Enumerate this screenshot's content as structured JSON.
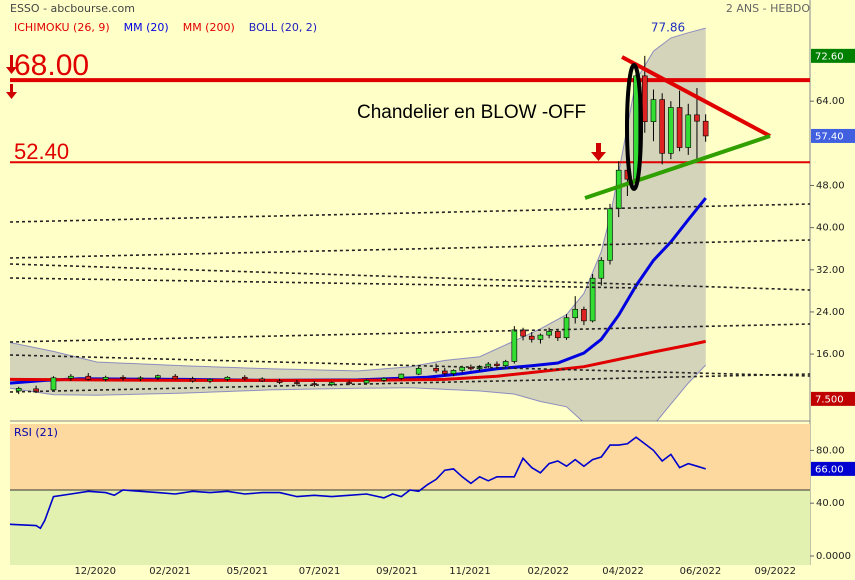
{
  "chart_data": [
    {
      "type": "candlestick",
      "title": "ESSO - abcbourse.com",
      "subtitle": "2 ANS - HEBDO",
      "annotation": "Chandelier en BLOW -OFF",
      "xlim": [
        0,
        92
      ],
      "xticks": [
        {
          "value": 9.8,
          "label": "12/2020"
        },
        {
          "value": 18.4,
          "label": "02/2021"
        },
        {
          "value": 27.3,
          "label": "05/2021"
        },
        {
          "value": 35.6,
          "label": "07/2021"
        },
        {
          "value": 44.5,
          "label": "09/2021"
        },
        {
          "value": 52.9,
          "label": "11/2021"
        },
        {
          "value": 61.9,
          "label": "02/2022"
        },
        {
          "value": 70.5,
          "label": "04/2022"
        },
        {
          "value": 79.4,
          "label": "06/2022"
        },
        {
          "value": 88,
          "label": "09/2022"
        }
      ],
      "ylim": [
        3.3,
        83.2
      ],
      "yticks": [
        {
          "value": 16,
          "label": "16.00"
        },
        {
          "value": 24,
          "label": "24.00"
        },
        {
          "value": 32,
          "label": "32.00"
        },
        {
          "value": 40,
          "label": "40.00"
        },
        {
          "value": 48,
          "label": "48.00"
        },
        {
          "value": 64,
          "label": "64.00"
        }
      ],
      "up_color": "#33dd33",
      "down_color": "#dd2222",
      "x": [
        1,
        3,
        5,
        7,
        9,
        11,
        13,
        15,
        17,
        19,
        21,
        23,
        25,
        27,
        29,
        31,
        33,
        35,
        37,
        39,
        41,
        43,
        45,
        47,
        49,
        50,
        51,
        52,
        53,
        54,
        55,
        56,
        57,
        58,
        59,
        60,
        61,
        62,
        63,
        64,
        65,
        66,
        67,
        68,
        69,
        70,
        71,
        72,
        73,
        74,
        75,
        76,
        77,
        78,
        79,
        80
      ],
      "open": [
        9.0,
        9.4,
        9.2,
        11.4,
        11.8,
        11.2,
        11.6,
        11.3,
        11.5,
        11.8,
        11.3,
        10.9,
        11.2,
        11.6,
        11.3,
        10.9,
        10.6,
        10.4,
        10.2,
        10.6,
        10.5,
        11.0,
        11.4,
        12.2,
        13.3,
        12.8,
        12.3,
        12.9,
        13.5,
        13.2,
        13.7,
        14.1,
        13.8,
        14.6,
        20.6,
        19.4,
        18.8,
        19.6,
        20.3,
        19.1,
        22.9,
        24.5,
        22.3,
        30.4,
        33.8,
        43.6,
        50.9,
        49.2,
        68.8,
        60.1,
        64.3,
        54.1,
        62.8,
        55.2,
        61.4,
        60.2
      ],
      "high": [
        9.8,
        10.0,
        11.8,
        12.2,
        12.4,
        11.9,
        12.0,
        11.8,
        12.1,
        12.2,
        11.7,
        11.4,
        11.8,
        12.0,
        11.6,
        11.3,
        11.1,
        10.9,
        10.8,
        11.0,
        11.2,
        11.6,
        12.3,
        13.6,
        14.2,
        13.4,
        13.1,
        13.8,
        14.0,
        13.9,
        14.5,
        14.6,
        14.9,
        21.3,
        21.0,
        20.2,
        19.9,
        21.0,
        20.8,
        23.6,
        27.0,
        25.0,
        31.2,
        34.4,
        44.5,
        52.6,
        52.0,
        70.5,
        72.6,
        66.2,
        65.5,
        64.0,
        66.0,
        63.5,
        66.5,
        61.5
      ],
      "low": [
        8.4,
        8.6,
        9.0,
        10.9,
        11.0,
        10.8,
        11.0,
        10.9,
        11.1,
        11.2,
        10.6,
        10.5,
        10.9,
        11.0,
        10.7,
        10.3,
        10.0,
        9.8,
        9.9,
        10.1,
        10.2,
        10.7,
        11.1,
        12.0,
        12.4,
        11.9,
        11.8,
        12.5,
        12.9,
        12.8,
        13.3,
        13.5,
        13.5,
        14.2,
        18.6,
        18.2,
        18.0,
        19.0,
        18.5,
        18.7,
        21.8,
        21.5,
        22.0,
        29.0,
        33.0,
        42.0,
        46.0,
        48.5,
        58.0,
        56.4,
        52.0,
        53.0,
        54.5,
        53.8,
        52.5,
        56.3
      ],
      "close": [
        9.5,
        8.8,
        11.5,
        11.8,
        11.2,
        11.6,
        11.4,
        11.5,
        11.9,
        11.3,
        10.9,
        11.2,
        11.6,
        11.3,
        10.9,
        10.6,
        10.4,
        10.2,
        10.6,
        10.5,
        11.0,
        11.4,
        12.2,
        13.3,
        12.8,
        12.3,
        12.9,
        13.5,
        13.2,
        13.7,
        14.1,
        13.8,
        14.6,
        20.6,
        19.4,
        18.8,
        19.6,
        20.3,
        19.1,
        22.9,
        24.5,
        22.3,
        30.4,
        33.8,
        43.6,
        50.9,
        49.2,
        68.8,
        60.1,
        64.3,
        54.1,
        62.8,
        55.2,
        61.4,
        60.2,
        57.4
      ],
      "ichimoku": {
        "name": "ICHIMOKU (26, 9)",
        "color": "#e00000"
      },
      "bands": {
        "name": "BOLL (20, 2)",
        "color": "#2020c0",
        "fill": "#a0a0a8",
        "x": [
          0,
          5,
          10,
          20,
          30,
          40,
          46,
          50,
          54,
          58,
          61,
          64,
          66,
          68,
          69,
          70,
          72,
          74,
          76,
          78,
          80
        ],
        "upper": [
          18.2,
          16.5,
          14.5,
          13.8,
          13.2,
          12.8,
          13.6,
          14.8,
          15.5,
          18.5,
          20.8,
          23.5,
          27.5,
          35.5,
          42.0,
          50.5,
          68.0,
          73.5,
          76.0,
          77.0,
          77.86
        ],
        "lower": [
          9.5,
          8.3,
          8.2,
          8.6,
          9.2,
          9.5,
          9.6,
          9.3,
          9.0,
          8.4,
          7.0,
          6.0,
          3.0,
          2.0,
          -3.0,
          -3.6,
          -1.0,
          2.5,
          6.5,
          10.5,
          13.9
        ]
      },
      "series": [
        {
          "name": "MM (20)",
          "color": "#0000e0",
          "x": [
            0,
            4,
            8,
            20,
            30,
            40,
            48,
            52,
            56,
            60,
            63,
            66,
            68,
            70,
            72,
            74,
            76,
            78,
            80
          ],
          "values": [
            10.5,
            11.0,
            11.3,
            11.2,
            11.0,
            11.1,
            11.6,
            12.3,
            13.2,
            13.8,
            14.3,
            16.2,
            18.8,
            23.4,
            29.0,
            33.8,
            37.3,
            41.5,
            45.6
          ]
        },
        {
          "name": "MM (200)",
          "color": "#e00000",
          "x": [
            0,
            20,
            40,
            50,
            56,
            60,
            66,
            70,
            74,
            78,
            80
          ],
          "values": [
            11.2,
            11.0,
            11.0,
            11.2,
            11.8,
            12.5,
            13.6,
            15.0,
            16.4,
            17.7,
            18.4
          ]
        }
      ],
      "levels": [
        {
          "value": 68,
          "label": "68.00"
        },
        {
          "value": 52.4,
          "label": "52.40"
        }
      ],
      "peak": {
        "value": 77.86,
        "label": "77.86"
      },
      "price_tags": [
        {
          "value": 72.6,
          "label": "72.60",
          "color": "#008000"
        },
        {
          "value": 57.4,
          "label": "57.40",
          "color": "#4060e0"
        },
        {
          "value": 7.5,
          "label": "7.500",
          "color": "#c00000"
        }
      ]
    },
    {
      "type": "line",
      "title": "RSI (21)",
      "xlim": [
        0,
        92
      ],
      "ylim": [
        0,
        100
      ],
      "yticks": [
        {
          "value": 0,
          "label": "0.0000"
        },
        {
          "value": 40,
          "label": "40.00"
        },
        {
          "value": 80,
          "label": "80.00"
        }
      ],
      "midline": 50,
      "upper_color": "#fdd9a0",
      "lower_color": "#e2f0b0",
      "series": [
        {
          "name": "RSI (21)",
          "color": "#0000cc",
          "x": [
            0,
            3,
            3.5,
            4,
            5,
            7,
            9,
            11,
            12,
            13,
            15,
            17,
            19,
            21,
            23,
            25,
            27,
            29,
            31,
            33,
            35,
            37,
            39,
            41,
            43,
            44,
            45,
            46,
            47,
            48,
            49,
            50,
            51,
            52,
            53,
            54,
            55,
            56,
            57,
            58,
            59,
            60,
            61,
            62,
            63,
            64,
            65,
            66,
            67,
            68,
            69,
            70,
            71,
            72,
            73,
            74,
            75,
            76,
            77,
            78,
            79,
            80
          ],
          "values": [
            24,
            23,
            21,
            27,
            45,
            47,
            49,
            48,
            46,
            50,
            49,
            48,
            47,
            49,
            48,
            49,
            47,
            48,
            48,
            45,
            46,
            45,
            46,
            47,
            44,
            47,
            45,
            50,
            49,
            54,
            58,
            65,
            66,
            60,
            55,
            60,
            57,
            60,
            60,
            60,
            74,
            67,
            63,
            70,
            72,
            68,
            73,
            68,
            73,
            75,
            84,
            84,
            85,
            90,
            85,
            80,
            72,
            77,
            67,
            70,
            68,
            66
          ]
        }
      ],
      "price_tags": [
        {
          "value": 66,
          "label": "66.00",
          "color": "#0000d0"
        }
      ]
    }
  ]
}
